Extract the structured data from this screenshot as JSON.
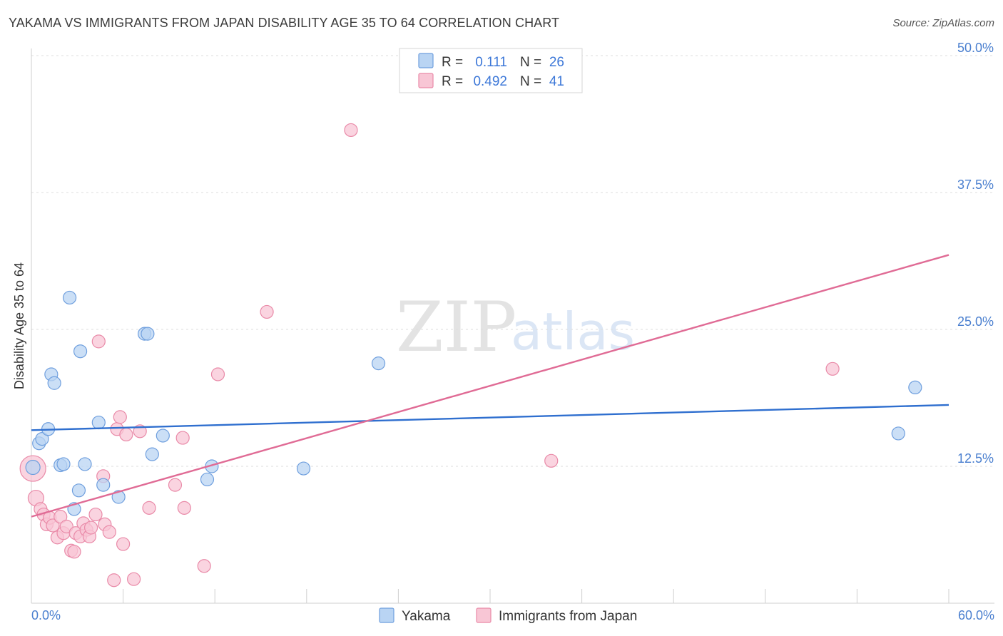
{
  "title": "YAKAMA VS IMMIGRANTS FROM JAPAN DISABILITY AGE 35 TO 64 CORRELATION CHART",
  "source": "Source: ZipAtlas.com",
  "watermark": {
    "zip": "ZIP",
    "atlas": "atlas"
  },
  "colors": {
    "yakama_fill": "#b9d4f3",
    "yakama_stroke": "#6f9fde",
    "yakama_line": "#2f6fcf",
    "japan_fill": "#f8c6d5",
    "japan_stroke": "#e98aa8",
    "japan_line": "#e06b95",
    "grid": "#dddddd",
    "axis_text": "#4a7fcf"
  },
  "legend_top": {
    "rows": [
      {
        "r_label": "R =",
        "r_value": "0.111",
        "n_label": "N =",
        "n_value": "26"
      },
      {
        "r_label": "R =",
        "r_value": "0.492",
        "n_label": "N =",
        "n_value": "41"
      }
    ]
  },
  "legend_bottom": {
    "items": [
      "Yakama",
      "Immigrants from Japan"
    ]
  },
  "chart_data": {
    "type": "scatter",
    "title": "YAKAMA VS IMMIGRANTS FROM JAPAN DISABILITY AGE 35 TO 64 CORRELATION CHART",
    "xlabel": "",
    "ylabel": "Disability Age 35 to 64",
    "xlim": [
      0,
      60
    ],
    "ylim": [
      0,
      50
    ],
    "x_tick_labels": [
      "0.0%",
      "60.0%"
    ],
    "y_ticks": [
      12.5,
      25.0,
      37.5,
      50.0
    ],
    "y_tick_labels": [
      "12.5%",
      "25.0%",
      "37.5%",
      "50.0%"
    ],
    "legend_position": "top-center",
    "series": [
      {
        "name": "Yakama",
        "r": 0.111,
        "n": 26,
        "trend": {
          "x": [
            0,
            60
          ],
          "y": [
            15.8,
            18.1
          ]
        },
        "points": [
          {
            "x": 0.1,
            "y": 12.4,
            "s": 10
          },
          {
            "x": 0.5,
            "y": 14.6,
            "s": 9
          },
          {
            "x": 0.7,
            "y": 15.0,
            "s": 9
          },
          {
            "x": 1.1,
            "y": 15.9,
            "s": 9
          },
          {
            "x": 1.3,
            "y": 20.9,
            "s": 9
          },
          {
            "x": 1.5,
            "y": 20.1,
            "s": 9
          },
          {
            "x": 1.9,
            "y": 12.6,
            "s": 9
          },
          {
            "x": 2.1,
            "y": 12.7,
            "s": 9
          },
          {
            "x": 2.5,
            "y": 27.9,
            "s": 9
          },
          {
            "x": 2.8,
            "y": 8.6,
            "s": 9
          },
          {
            "x": 3.1,
            "y": 10.3,
            "s": 9
          },
          {
            "x": 3.2,
            "y": 23.0,
            "s": 9
          },
          {
            "x": 3.5,
            "y": 12.7,
            "s": 9
          },
          {
            "x": 4.4,
            "y": 16.5,
            "s": 9
          },
          {
            "x": 4.7,
            "y": 10.8,
            "s": 9
          },
          {
            "x": 5.7,
            "y": 9.7,
            "s": 9
          },
          {
            "x": 7.4,
            "y": 24.6,
            "s": 9
          },
          {
            "x": 7.6,
            "y": 24.6,
            "s": 9
          },
          {
            "x": 7.9,
            "y": 13.6,
            "s": 9
          },
          {
            "x": 8.6,
            "y": 15.3,
            "s": 9
          },
          {
            "x": 11.5,
            "y": 11.3,
            "s": 9
          },
          {
            "x": 11.8,
            "y": 12.5,
            "s": 9
          },
          {
            "x": 17.8,
            "y": 12.3,
            "s": 9
          },
          {
            "x": 22.7,
            "y": 21.9,
            "s": 9
          },
          {
            "x": 56.7,
            "y": 15.5,
            "s": 9
          },
          {
            "x": 57.8,
            "y": 19.7,
            "s": 9
          }
        ]
      },
      {
        "name": "Immigrants from Japan",
        "r": 0.492,
        "n": 41,
        "trend": {
          "x": [
            0,
            60
          ],
          "y": [
            7.9,
            31.8
          ]
        },
        "points": [
          {
            "x": 0.1,
            "y": 12.3,
            "s": 18
          },
          {
            "x": 0.3,
            "y": 9.6,
            "s": 11
          },
          {
            "x": 0.6,
            "y": 8.6,
            "s": 9
          },
          {
            "x": 0.8,
            "y": 8.1,
            "s": 9
          },
          {
            "x": 1.0,
            "y": 7.2,
            "s": 9
          },
          {
            "x": 1.2,
            "y": 7.8,
            "s": 9
          },
          {
            "x": 1.4,
            "y": 7.1,
            "s": 9
          },
          {
            "x": 1.7,
            "y": 6.0,
            "s": 9
          },
          {
            "x": 1.9,
            "y": 7.9,
            "s": 9
          },
          {
            "x": 2.1,
            "y": 6.4,
            "s": 9
          },
          {
            "x": 2.3,
            "y": 7.0,
            "s": 9
          },
          {
            "x": 2.6,
            "y": 4.8,
            "s": 9
          },
          {
            "x": 2.8,
            "y": 4.7,
            "s": 9
          },
          {
            "x": 2.9,
            "y": 6.4,
            "s": 9
          },
          {
            "x": 3.2,
            "y": 6.1,
            "s": 9
          },
          {
            "x": 3.4,
            "y": 7.3,
            "s": 9
          },
          {
            "x": 3.6,
            "y": 6.7,
            "s": 9
          },
          {
            "x": 3.8,
            "y": 6.1,
            "s": 9
          },
          {
            "x": 3.9,
            "y": 6.9,
            "s": 9
          },
          {
            "x": 4.2,
            "y": 8.1,
            "s": 9
          },
          {
            "x": 4.4,
            "y": 23.9,
            "s": 9
          },
          {
            "x": 4.7,
            "y": 11.6,
            "s": 9
          },
          {
            "x": 4.8,
            "y": 7.2,
            "s": 9
          },
          {
            "x": 5.1,
            "y": 6.5,
            "s": 9
          },
          {
            "x": 5.4,
            "y": 2.1,
            "s": 9
          },
          {
            "x": 5.6,
            "y": 15.9,
            "s": 9
          },
          {
            "x": 5.8,
            "y": 17.0,
            "s": 9
          },
          {
            "x": 6.0,
            "y": 5.4,
            "s": 9
          },
          {
            "x": 6.2,
            "y": 15.4,
            "s": 9
          },
          {
            "x": 6.7,
            "y": 2.2,
            "s": 9
          },
          {
            "x": 7.1,
            "y": 15.7,
            "s": 9
          },
          {
            "x": 7.7,
            "y": 8.7,
            "s": 9
          },
          {
            "x": 9.4,
            "y": 10.8,
            "s": 9
          },
          {
            "x": 9.9,
            "y": 15.1,
            "s": 9
          },
          {
            "x": 10.0,
            "y": 8.7,
            "s": 9
          },
          {
            "x": 11.3,
            "y": 3.4,
            "s": 9
          },
          {
            "x": 12.2,
            "y": 20.9,
            "s": 9
          },
          {
            "x": 15.4,
            "y": 26.6,
            "s": 9
          },
          {
            "x": 20.9,
            "y": 43.2,
            "s": 9
          },
          {
            "x": 34.0,
            "y": 13.0,
            "s": 9
          },
          {
            "x": 52.4,
            "y": 21.4,
            "s": 9
          }
        ]
      }
    ]
  }
}
